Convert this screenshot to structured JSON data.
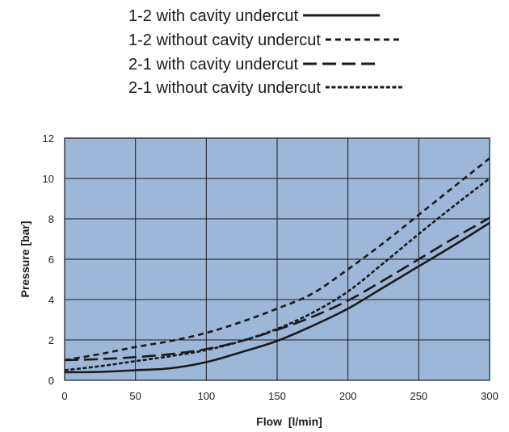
{
  "chart_data": {
    "type": "line",
    "title": "",
    "xlabel": "Flow  [l/min]",
    "ylabel": "Pressure [bar]",
    "xlim": [
      0,
      300
    ],
    "ylim": [
      0,
      12
    ],
    "x_ticks": [
      0,
      50,
      100,
      150,
      200,
      250,
      300
    ],
    "y_ticks": [
      0,
      2,
      4,
      6,
      8,
      10,
      12
    ],
    "grid": true,
    "legend_position": "top",
    "plot_background": "#9DB7D9",
    "line_color": "#1a1a1a",
    "series": [
      {
        "name": "1-2 with cavity undercut",
        "style": "solid",
        "x": [
          0,
          25,
          50,
          75,
          100,
          125,
          150,
          175,
          200,
          225,
          250,
          275,
          300
        ],
        "y": [
          0.4,
          0.42,
          0.5,
          0.6,
          0.9,
          1.4,
          1.95,
          2.7,
          3.55,
          4.6,
          5.65,
          6.7,
          7.8
        ]
      },
      {
        "name": "1-2 without cavity undercut",
        "style": "short-dash",
        "x": [
          0,
          25,
          50,
          75,
          100,
          125,
          150,
          175,
          200,
          225,
          250,
          275,
          300
        ],
        "y": [
          1.0,
          1.3,
          1.65,
          1.95,
          2.35,
          2.9,
          3.55,
          4.3,
          5.5,
          6.8,
          8.2,
          9.6,
          11.0
        ]
      },
      {
        "name": "2-1 with cavity undercut",
        "style": "long-dash",
        "x": [
          0,
          25,
          50,
          75,
          100,
          125,
          150,
          175,
          200,
          225,
          250,
          275,
          300
        ],
        "y": [
          1.0,
          1.05,
          1.15,
          1.3,
          1.55,
          1.95,
          2.5,
          3.15,
          3.95,
          4.95,
          6.0,
          7.05,
          8.05
        ]
      },
      {
        "name": "2-1 without cavity undercut",
        "style": "fine-dash",
        "x": [
          0,
          25,
          50,
          75,
          100,
          125,
          150,
          175,
          200,
          225,
          250,
          275,
          300
        ],
        "y": [
          0.5,
          0.7,
          0.95,
          1.2,
          1.5,
          1.95,
          2.55,
          3.35,
          4.4,
          5.8,
          7.25,
          8.65,
          10.0
        ]
      }
    ]
  }
}
